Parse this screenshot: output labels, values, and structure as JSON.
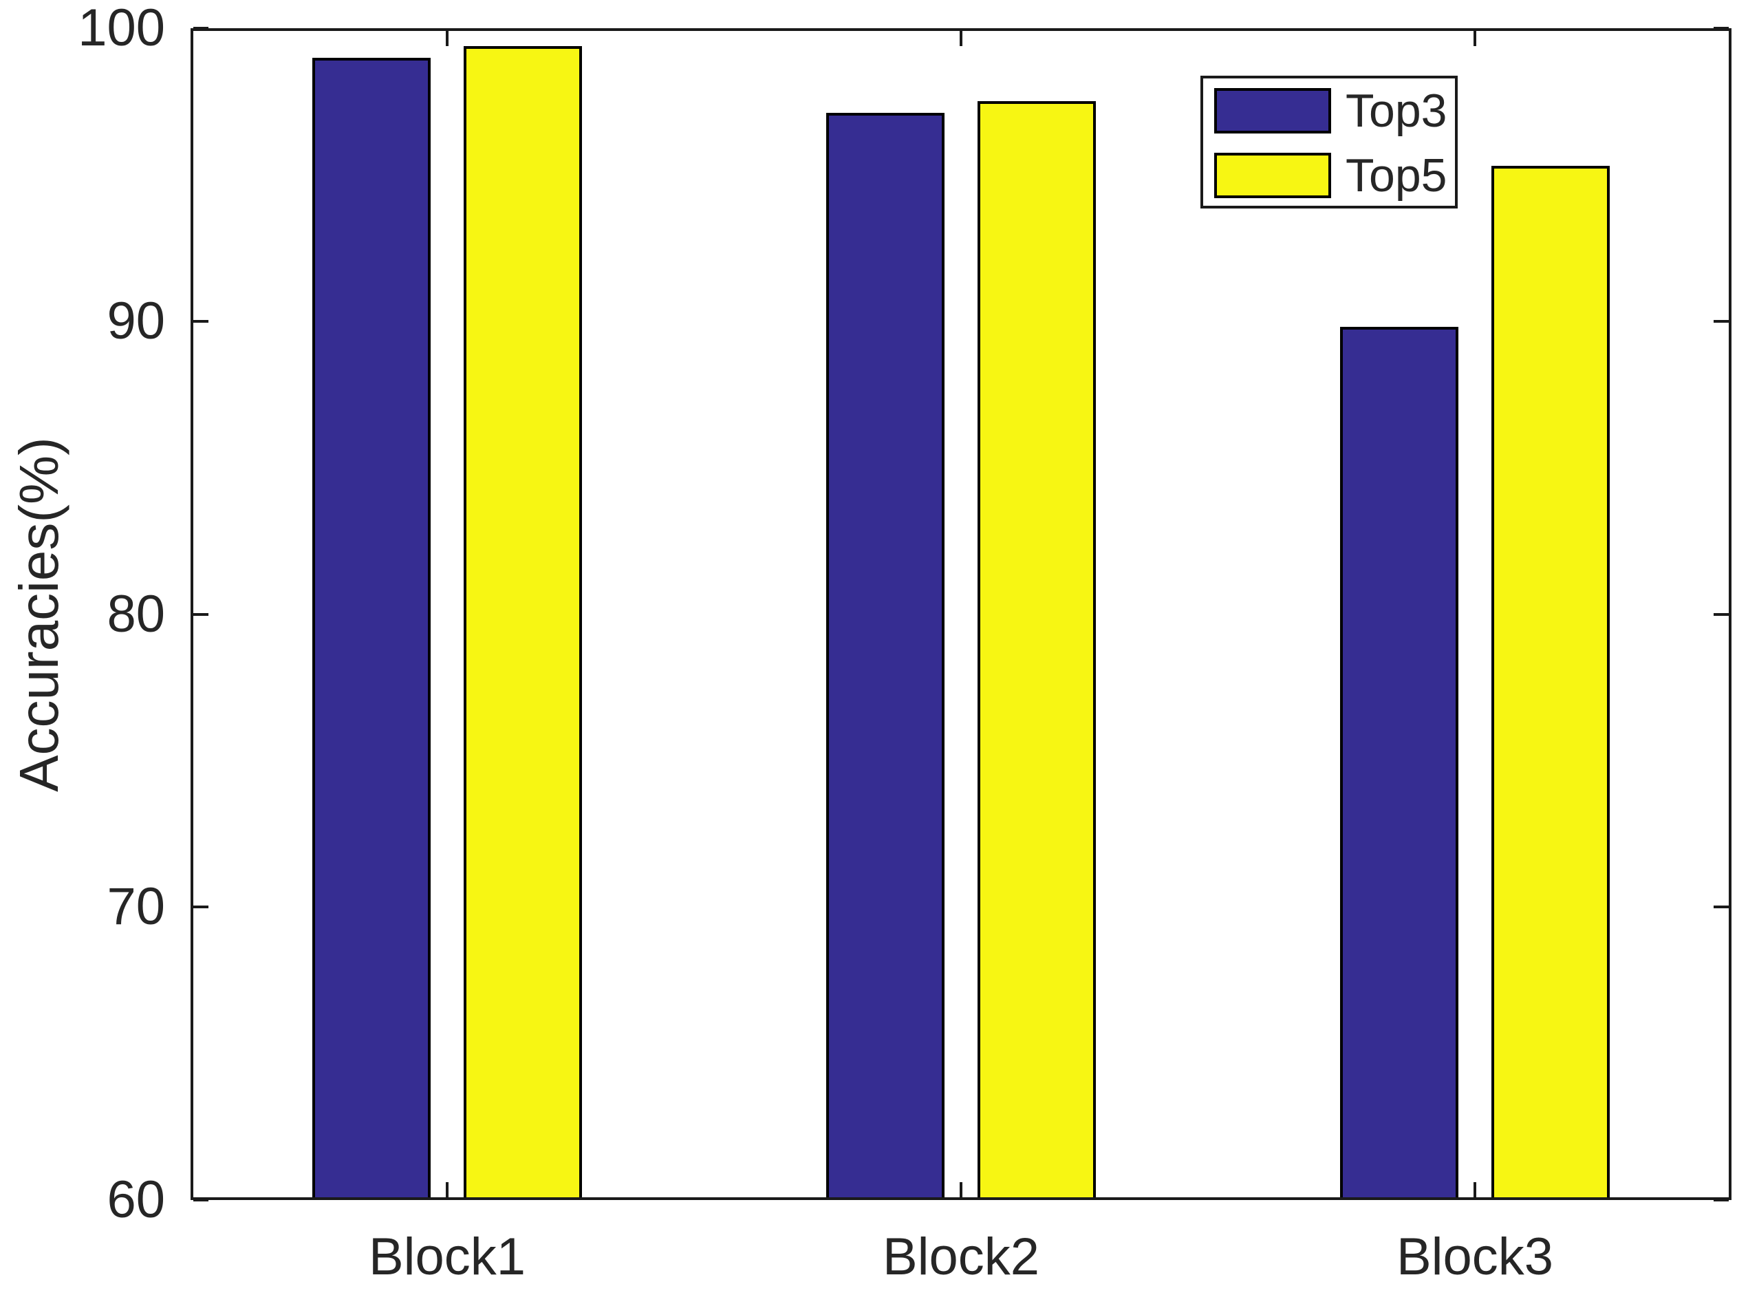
{
  "figure": {
    "background_color": "#ffffff",
    "axis_color": "#1a1a1a",
    "text_color": "#262626"
  },
  "chart_data": {
    "type": "bar",
    "title": "",
    "xlabel": "",
    "ylabel": "Accuracies(%)",
    "categories": [
      "Block1",
      "Block2",
      "Block3"
    ],
    "series": [
      {
        "name": "Top3",
        "color": "#362D92",
        "values": [
          99.0,
          97.1,
          89.8
        ]
      },
      {
        "name": "Top5",
        "color": "#F7F613",
        "values": [
          99.4,
          97.5,
          95.3
        ]
      }
    ],
    "ylim": [
      60,
      100
    ],
    "yticks": [
      60,
      70,
      80,
      90,
      100
    ],
    "bar_edge_color": "#000000",
    "grid": false,
    "legend_position": "top-right",
    "legend_entries": [
      "Top3",
      "Top5"
    ]
  }
}
